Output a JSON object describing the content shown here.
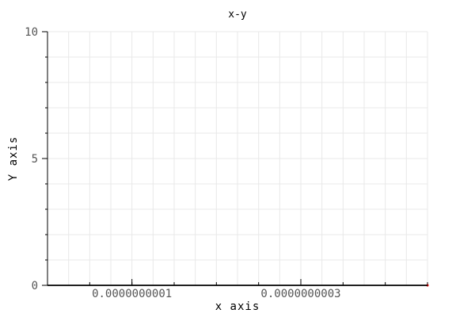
{
  "chart_data": {
    "type": "line",
    "title": "x-y",
    "xlabel": "x axis",
    "ylabel": "Y axis",
    "xlim": [
      0.0,
      4.5e-10
    ],
    "ylim": [
      0,
      10
    ],
    "x_ticks": [
      1e-10,
      3e-10
    ],
    "x_tick_labels": [
      "0.0000000001",
      "0.0000000003"
    ],
    "y_ticks": [
      0,
      5,
      10
    ],
    "y_tick_labels": [
      "0",
      "5",
      "10"
    ],
    "grid": true,
    "series": [
      {
        "x": [
          0.0,
          4.5e-10
        ],
        "y": [
          0,
          0
        ],
        "color": "#000000"
      }
    ],
    "colors": {
      "grid": "#e8e8e8",
      "axis": "#000000",
      "endpoint_marker": "#cc0000"
    }
  }
}
